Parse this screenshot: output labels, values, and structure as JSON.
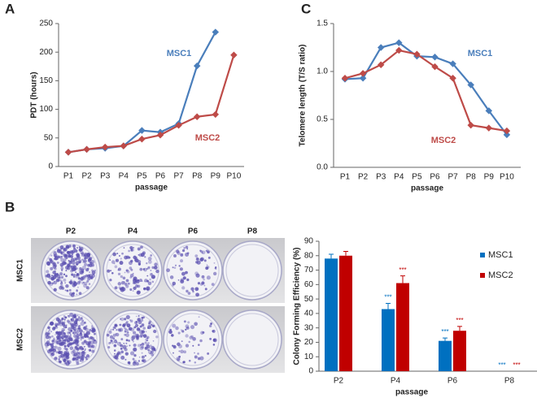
{
  "panels": {
    "a": "A",
    "b": "B",
    "c": "C"
  },
  "plate_image": {
    "columns": [
      "P2",
      "P4",
      "P6",
      "P8"
    ],
    "rows": [
      "MSC1",
      "MSC2"
    ]
  },
  "chart_data": [
    {
      "type": "line",
      "ylabel": "PDT (hours)",
      "xlabel": "passage",
      "categories": [
        "P1",
        "P2",
        "P3",
        "P4",
        "P5",
        "P6",
        "P7",
        "P8",
        "P9",
        "P10"
      ],
      "ylim": [
        0,
        250
      ],
      "yticks": [
        0,
        50,
        100,
        150,
        200,
        250
      ],
      "series": [
        {
          "name": "MSC1",
          "color": "#4a7ebb",
          "values": [
            25,
            30,
            32,
            36,
            63,
            60,
            75,
            176,
            235,
            null
          ]
        },
        {
          "name": "MSC2",
          "color": "#be4b48",
          "values": [
            25,
            30,
            34,
            36,
            48,
            55,
            72,
            87,
            91,
            195
          ]
        }
      ]
    },
    {
      "type": "line",
      "ylabel": "Telomere length (T/S ratio)",
      "xlabel": "passage",
      "categories": [
        "P1",
        "P2",
        "P3",
        "P4",
        "P5",
        "P6",
        "P7",
        "P8",
        "P9",
        "P10"
      ],
      "ylim": [
        0,
        1.5
      ],
      "yticks": [
        {
          "value": 0,
          "label": "0.0"
        },
        0.5,
        {
          "value": 1,
          "label": "1.0"
        },
        1.5
      ],
      "series": [
        {
          "name": "MSC1",
          "color": "#4a7ebb",
          "values": [
            0.92,
            0.93,
            1.25,
            1.3,
            1.16,
            1.15,
            1.08,
            0.86,
            0.59,
            0.34
          ]
        },
        {
          "name": "MSC2",
          "color": "#be4b48",
          "values": [
            0.93,
            0.98,
            1.07,
            1.22,
            1.18,
            1.05,
            0.93,
            0.44,
            0.41,
            0.38
          ]
        }
      ]
    },
    {
      "type": "bar",
      "ylabel": "Colony Forming Efficiency (%)",
      "xlabel": "passage",
      "categories": [
        "P2",
        "P4",
        "P6",
        "P8"
      ],
      "ylim": [
        0,
        90
      ],
      "yticks": [
        0,
        10,
        20,
        30,
        40,
        50,
        60,
        70,
        80,
        90
      ],
      "series": [
        {
          "name": "MSC1",
          "color": "#0070c0",
          "values": [
            78,
            43,
            21,
            0
          ],
          "errors": [
            3,
            4,
            2,
            null
          ],
          "significance": [
            null,
            "***",
            "***",
            "***"
          ]
        },
        {
          "name": "MSC2",
          "color": "#c00000",
          "values": [
            80,
            61,
            28,
            0
          ],
          "errors": [
            3,
            5,
            3,
            null
          ],
          "significance": [
            null,
            "***",
            "***",
            "***"
          ]
        }
      ]
    }
  ]
}
